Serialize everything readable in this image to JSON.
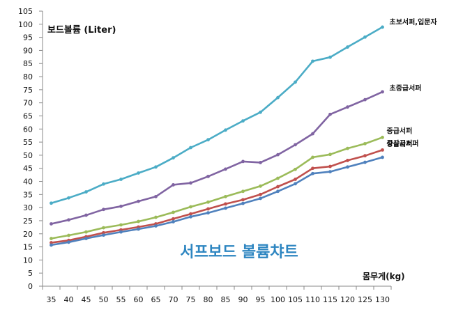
{
  "chart_data": {
    "type": "line",
    "title": "서프보드 볼륨챠트",
    "xlabel": "몸무게(kg)",
    "ylabel": "보드볼륨 (Liter)",
    "x": [
      35,
      40,
      45,
      50,
      55,
      60,
      65,
      70,
      75,
      80,
      85,
      90,
      95,
      100,
      105,
      110,
      115,
      120,
      125,
      130
    ],
    "ylim": [
      0,
      105
    ],
    "ytick_step": 5,
    "grid": false,
    "series": [
      {
        "name": "초보서퍼,입문자",
        "color": "#4bacc6",
        "values": [
          31.7,
          33.7,
          36.0,
          39.0,
          40.8,
          43.2,
          45.5,
          49.0,
          52.9,
          55.9,
          59.6,
          63.1,
          66.4,
          72.0,
          77.9,
          85.9,
          87.4,
          91.3,
          95.1,
          98.9
        ]
      },
      {
        "name": "초중급서퍼",
        "color": "#8064a2",
        "values": [
          23.8,
          25.3,
          27.1,
          29.3,
          30.5,
          32.4,
          34.2,
          38.7,
          39.4,
          41.9,
          44.7,
          47.6,
          47.2,
          50.2,
          54.0,
          58.2,
          65.6,
          68.4,
          71.2,
          74.2
        ]
      },
      {
        "name": "중급서퍼",
        "color": "#9bbb59",
        "values": [
          18.2,
          19.4,
          20.7,
          22.3,
          23.4,
          24.7,
          26.3,
          28.2,
          30.3,
          32.1,
          34.2,
          36.2,
          38.2,
          41.2,
          44.6,
          49.2,
          50.3,
          52.6,
          54.4,
          56.8
        ]
      },
      {
        "name": "중상급서퍼",
        "color": "#c0504d",
        "values": [
          16.6,
          17.5,
          18.9,
          20.4,
          21.5,
          22.6,
          23.8,
          25.7,
          27.6,
          29.5,
          31.4,
          33.0,
          35.0,
          38.0,
          40.8,
          45.0,
          45.7,
          48.0,
          49.8,
          52.0
        ]
      },
      {
        "name": "상급서퍼",
        "color": "#4f81bd",
        "values": [
          15.7,
          16.8,
          18.2,
          19.5,
          20.7,
          21.8,
          23.0,
          24.6,
          26.5,
          28.0,
          29.8,
          31.6,
          33.5,
          36.2,
          39.1,
          43.0,
          43.7,
          45.5,
          47.3,
          49.2
        ]
      }
    ],
    "title_color": "#2e86c1"
  }
}
